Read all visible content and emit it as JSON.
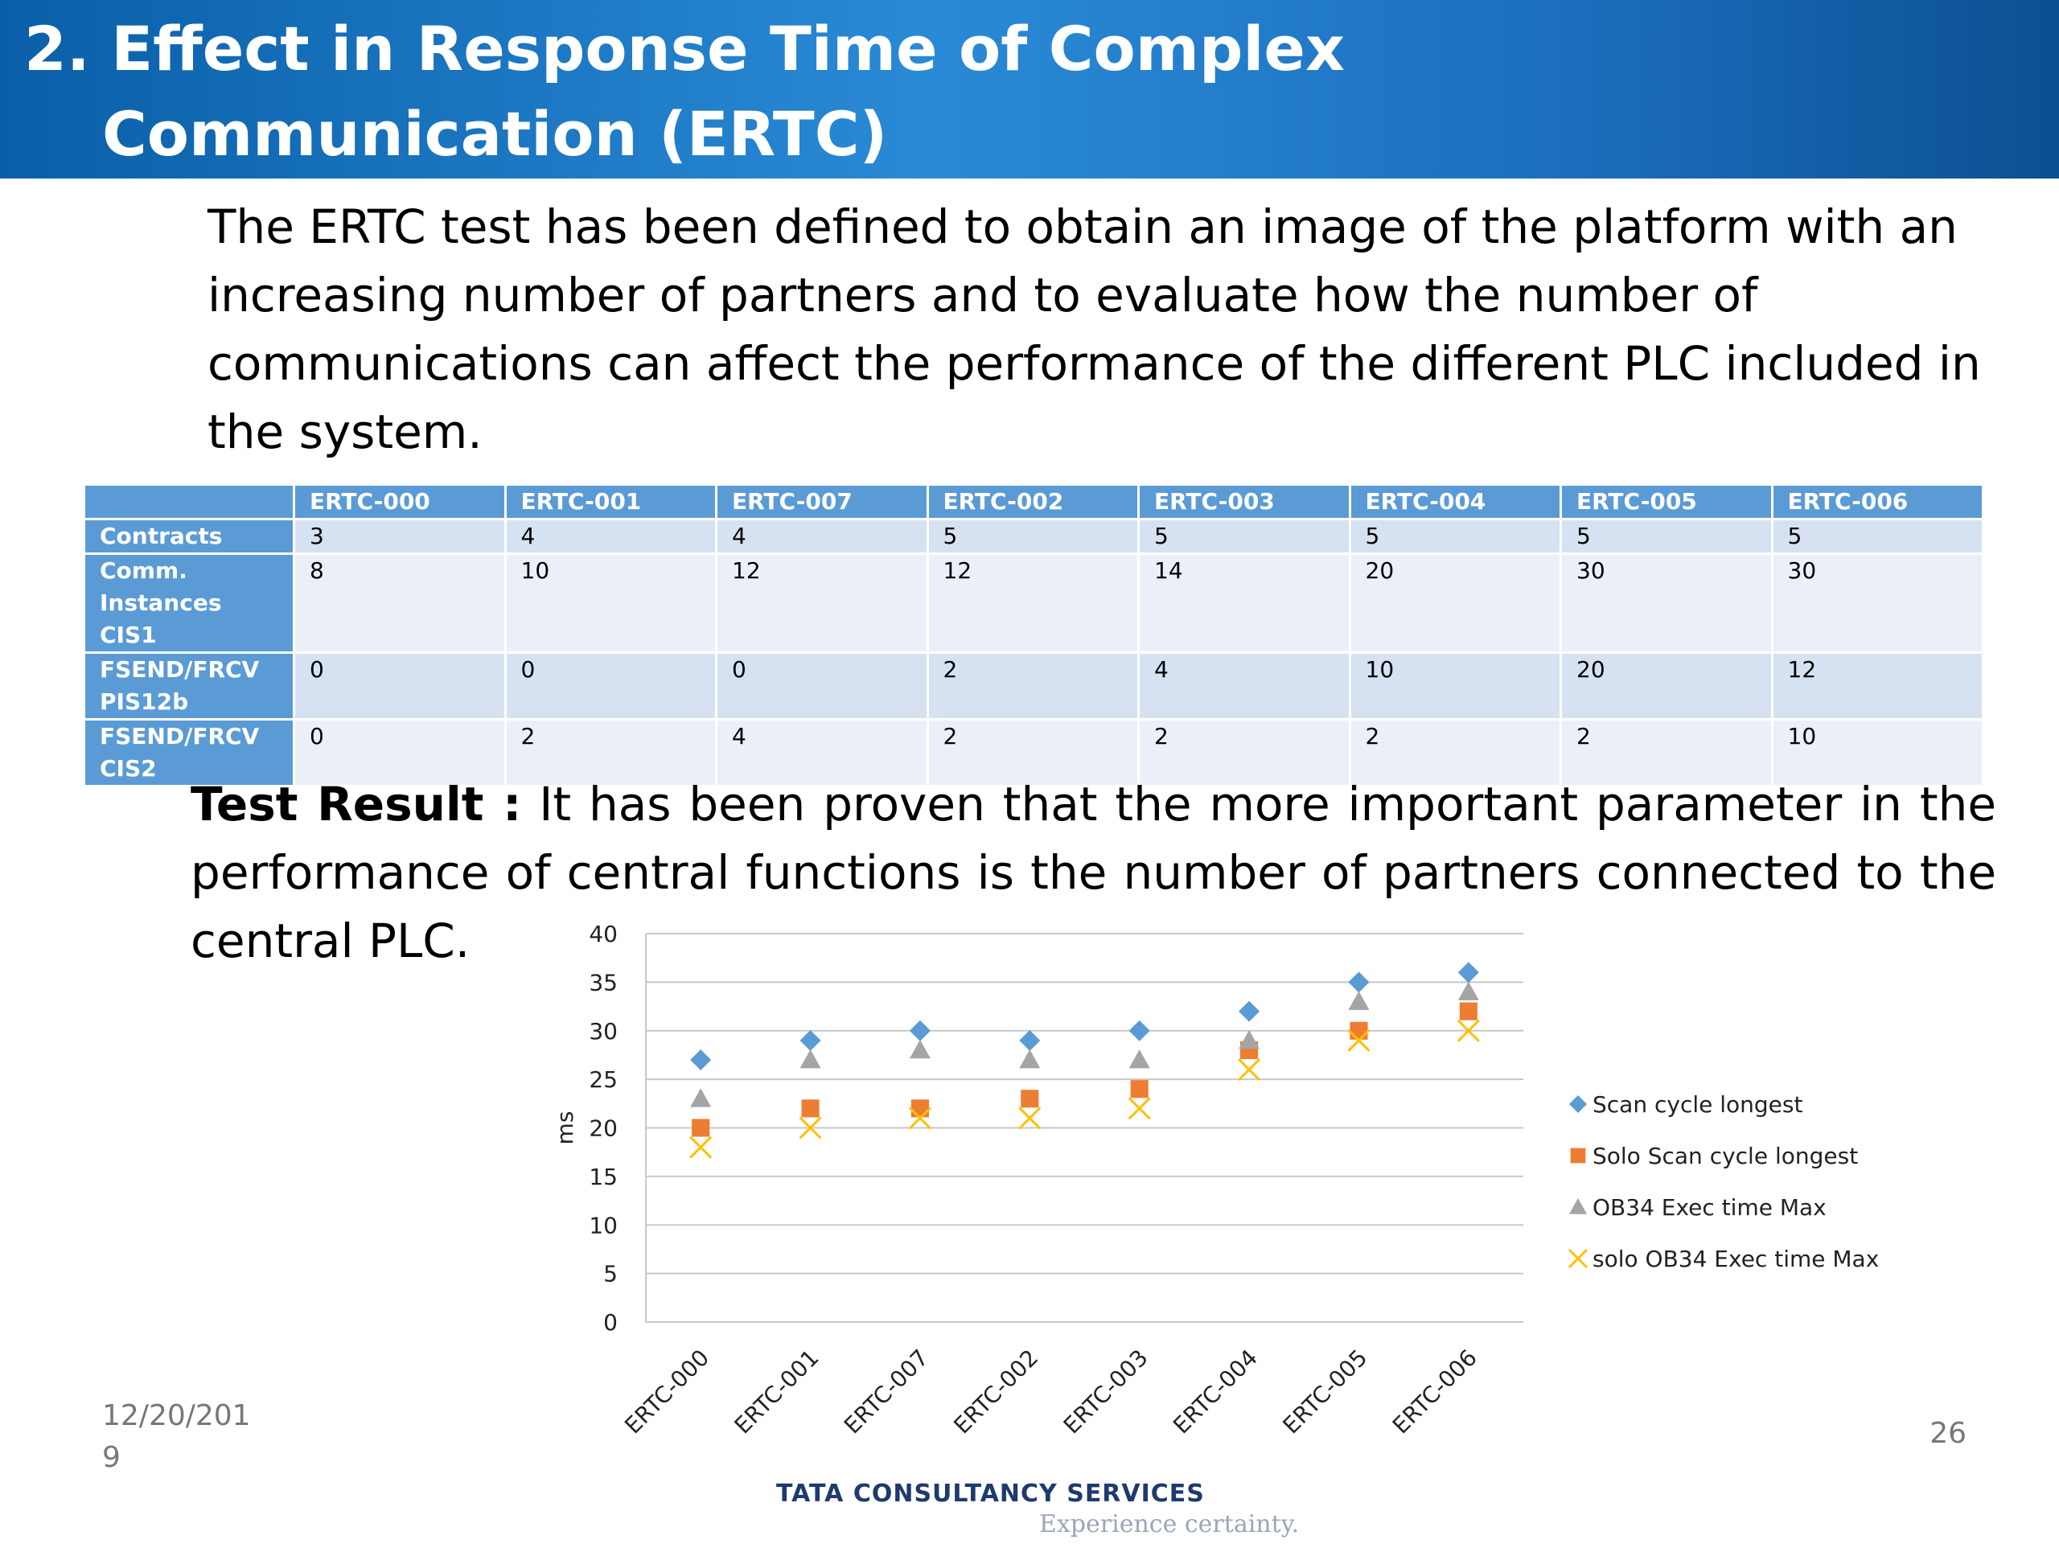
{
  "header": {
    "title": "2. Effect in Response Time of Complex Communication (ERTC)"
  },
  "intro": "The ERTC test has been defined to obtain an image of the platform with an increasing number of partners and to evaluate how the number of communications can affect the performance of the different PLC included in the system.",
  "table": {
    "columns": [
      "ERTC-000",
      "ERTC-001",
      "ERTC-007",
      "ERTC-002",
      "ERTC-003",
      "ERTC-004",
      "ERTC-005",
      "ERTC-006"
    ],
    "rows": [
      {
        "label": "Contracts",
        "cells": [
          3,
          4,
          4,
          5,
          5,
          5,
          5,
          5
        ]
      },
      {
        "label": "Comm. Instances CIS1",
        "cells": [
          8,
          10,
          12,
          12,
          14,
          20,
          30,
          30
        ]
      },
      {
        "label": "FSEND/FRCV PIS12b",
        "cells": [
          0,
          0,
          0,
          2,
          4,
          10,
          20,
          12
        ]
      },
      {
        "label": "FSEND/FRCV CIS2",
        "cells": [
          0,
          2,
          4,
          2,
          2,
          2,
          2,
          10
        ]
      }
    ]
  },
  "result": {
    "label": "Test Result :",
    "text": "It has been proven that the more important parameter in the performance of central functions is the number of partners connected to the central PLC."
  },
  "chart_data": {
    "type": "scatter",
    "ylabel": "ms",
    "categories": [
      "ERTC-000",
      "ERTC-001",
      "ERTC-007",
      "ERTC-002",
      "ERTC-003",
      "ERTC-004",
      "ERTC-005",
      "ERTC-006"
    ],
    "series": [
      {
        "name": "Scan cycle longest",
        "color": "#5b9bd5",
        "marker": "diamond",
        "values": [
          27,
          29,
          30,
          29,
          30,
          32,
          35,
          36
        ]
      },
      {
        "name": "Solo Scan cycle longest",
        "color": "#ed7d31",
        "marker": "square",
        "values": [
          20,
          22,
          22,
          23,
          24,
          28,
          30,
          32
        ]
      },
      {
        "name": "OB34 Exec time Max",
        "color": "#a5a5a5",
        "marker": "triangle",
        "values": [
          23,
          27,
          28,
          27,
          27,
          29,
          33,
          34
        ]
      },
      {
        "name": "solo OB34 Exec time Max",
        "color": "#ffc000",
        "marker": "x",
        "values": [
          18,
          20,
          21,
          21,
          22,
          26,
          29,
          30
        ]
      }
    ],
    "ylim": [
      0,
      40
    ],
    "yticks": [
      0,
      5,
      10,
      15,
      20,
      25,
      30,
      35,
      40
    ],
    "grid": true,
    "legend": "right"
  },
  "footer": {
    "date": "12/20/2019",
    "page": "26",
    "logo": "TATA CONSULTANCY SERVICES",
    "tagline": "Experience certainty."
  }
}
